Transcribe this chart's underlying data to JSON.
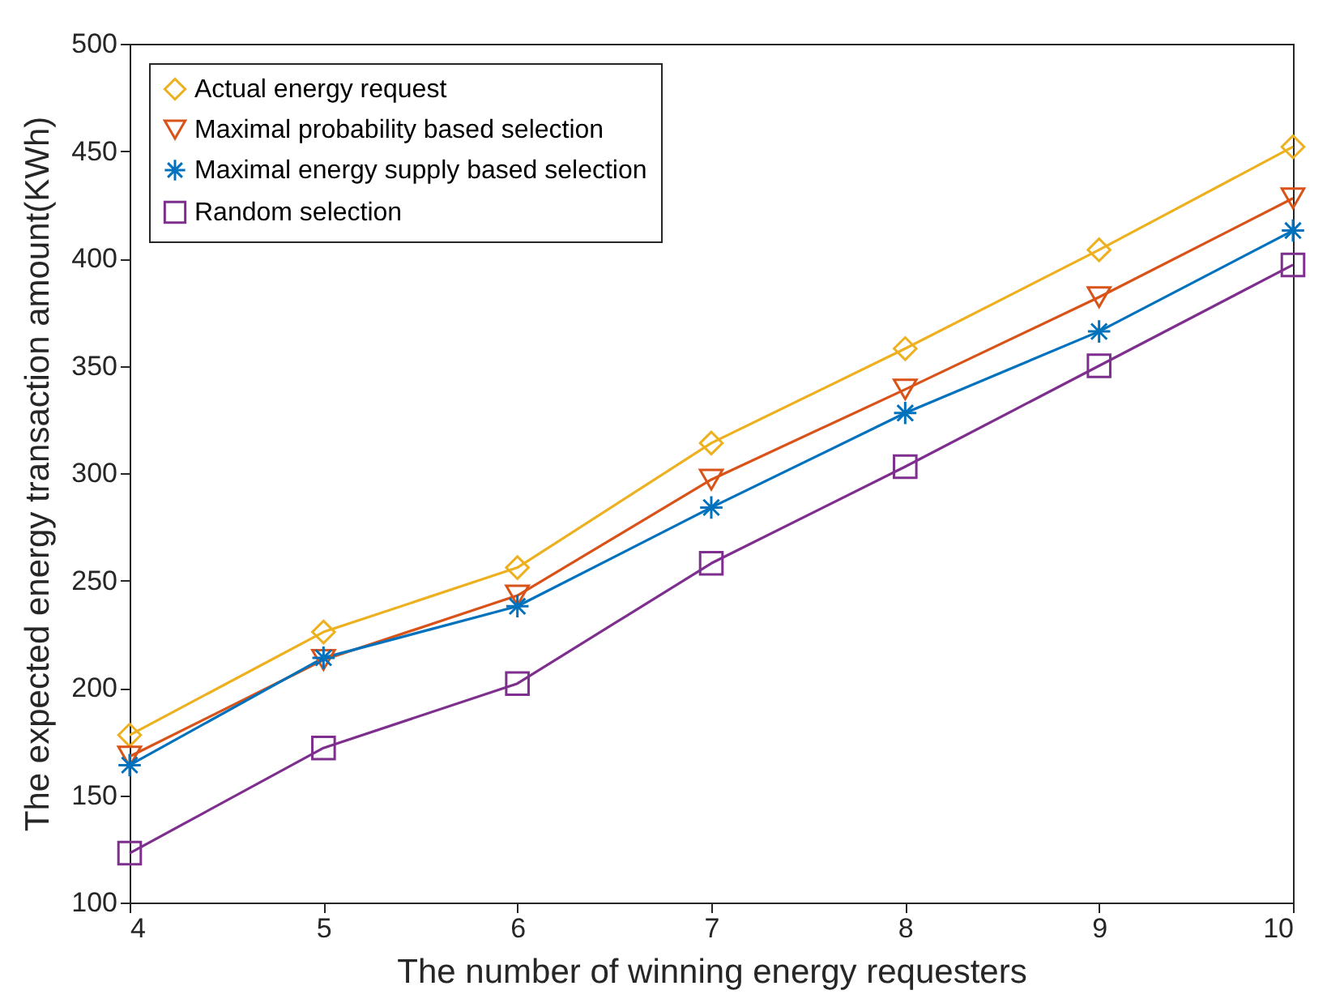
{
  "chart_data": {
    "type": "line",
    "xlabel": "The number of winning energy requesters",
    "ylabel": "The expected energy transaction amount(KWh)",
    "x": [
      4,
      5,
      6,
      7,
      8,
      9,
      10
    ],
    "xlim": [
      4,
      10
    ],
    "xticks": [
      4,
      5,
      6,
      7,
      8,
      9,
      10
    ],
    "ylim": [
      100,
      500
    ],
    "yticks": [
      100,
      150,
      200,
      250,
      300,
      350,
      400,
      450,
      500
    ],
    "grid": false,
    "legend": "top left",
    "line_style": "solid",
    "series": [
      {
        "name": "Actual energy request",
        "color": "#edb120",
        "marker": "diamond",
        "values": [
          178,
          226,
          256,
          314,
          358,
          404,
          452
        ]
      },
      {
        "name": "Maximal probability based selection",
        "color": "#d95319",
        "marker": "triangle",
        "values": [
          168,
          213,
          243,
          297,
          339,
          382,
          428
        ]
      },
      {
        "name": "Maximal energy supply based selection",
        "color": "#0072bd",
        "marker": "cross",
        "values": [
          164,
          214,
          238,
          284,
          328,
          366,
          413
        ]
      },
      {
        "name": "Random selection",
        "color": "#7e2f8e",
        "marker": "square",
        "values": [
          123,
          172,
          202,
          258,
          303,
          350,
          397
        ]
      }
    ]
  }
}
